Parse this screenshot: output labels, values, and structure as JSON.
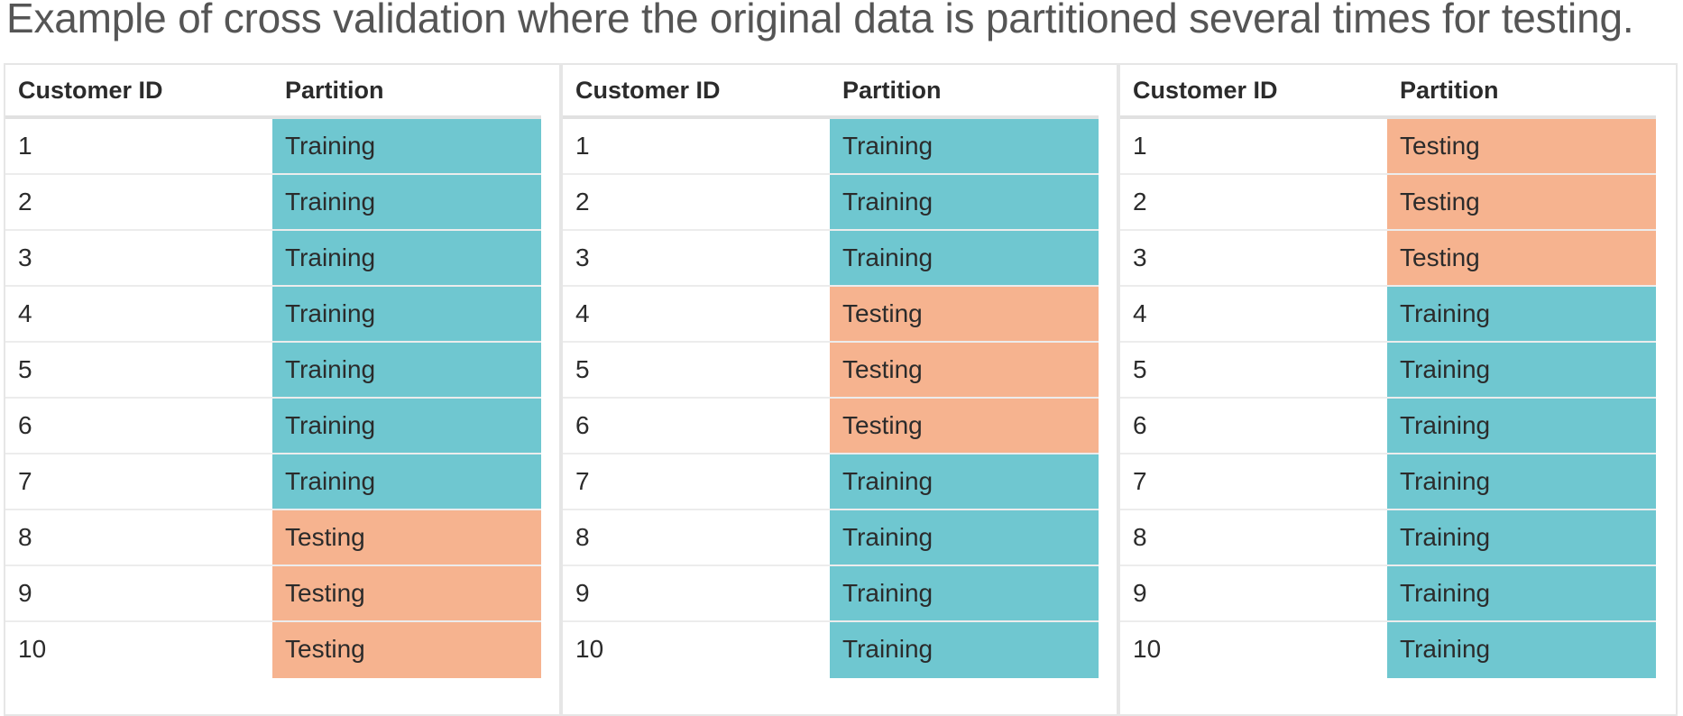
{
  "caption": "Example of cross validation where the original data is partitioned several times for testing.",
  "colors": {
    "training": "#6fc7d0",
    "testing": "#f6b38f",
    "border": "#e6e6e6"
  },
  "tables": [
    {
      "headers": {
        "id": "Customer ID",
        "partition": "Partition"
      },
      "rows": [
        {
          "id": "1",
          "partition": "Training"
        },
        {
          "id": "2",
          "partition": "Training"
        },
        {
          "id": "3",
          "partition": "Training"
        },
        {
          "id": "4",
          "partition": "Training"
        },
        {
          "id": "5",
          "partition": "Training"
        },
        {
          "id": "6",
          "partition": "Training"
        },
        {
          "id": "7",
          "partition": "Training"
        },
        {
          "id": "8",
          "partition": "Testing"
        },
        {
          "id": "9",
          "partition": "Testing"
        },
        {
          "id": "10",
          "partition": "Testing"
        }
      ]
    },
    {
      "headers": {
        "id": "Customer ID",
        "partition": "Partition"
      },
      "rows": [
        {
          "id": "1",
          "partition": "Training"
        },
        {
          "id": "2",
          "partition": "Training"
        },
        {
          "id": "3",
          "partition": "Training"
        },
        {
          "id": "4",
          "partition": "Testing"
        },
        {
          "id": "5",
          "partition": "Testing"
        },
        {
          "id": "6",
          "partition": "Testing"
        },
        {
          "id": "7",
          "partition": "Training"
        },
        {
          "id": "8",
          "partition": "Training"
        },
        {
          "id": "9",
          "partition": "Training"
        },
        {
          "id": "10",
          "partition": "Training"
        }
      ]
    },
    {
      "headers": {
        "id": "Customer ID",
        "partition": "Partition"
      },
      "rows": [
        {
          "id": "1",
          "partition": "Testing"
        },
        {
          "id": "2",
          "partition": "Testing"
        },
        {
          "id": "3",
          "partition": "Testing"
        },
        {
          "id": "4",
          "partition": "Training"
        },
        {
          "id": "5",
          "partition": "Training"
        },
        {
          "id": "6",
          "partition": "Training"
        },
        {
          "id": "7",
          "partition": "Training"
        },
        {
          "id": "8",
          "partition": "Training"
        },
        {
          "id": "9",
          "partition": "Training"
        },
        {
          "id": "10",
          "partition": "Training"
        }
      ]
    }
  ]
}
